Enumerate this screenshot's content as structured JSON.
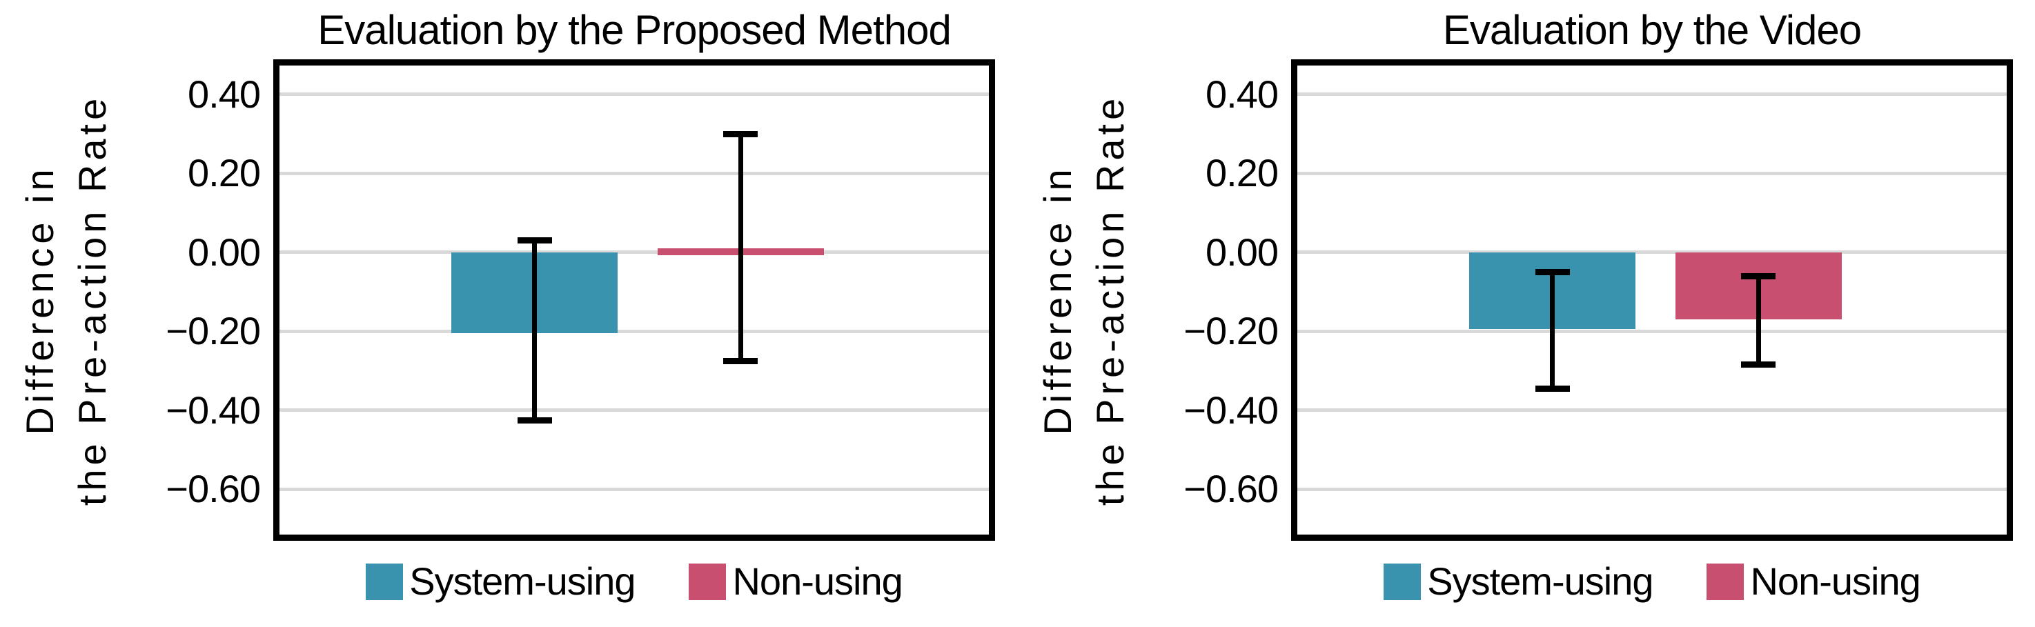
{
  "figure": {
    "background": "#ffffff",
    "frame_color": "#000000",
    "grid_color": "#d9d9d9",
    "error_bar_color": "#000000",
    "series_colors": {
      "system_using": "#3a93ae",
      "non_using": "#c94f70"
    }
  },
  "chart_data": [
    {
      "type": "bar",
      "title": "Evaluation by the Proposed Method",
      "ylabel_lines": [
        "Difference in",
        "the Pre-action Rate"
      ],
      "categories": [
        "System-using",
        "Non-using"
      ],
      "bars": [
        {
          "label": "System-using",
          "value": -0.205,
          "error_high": 0.03,
          "error_low": -0.425,
          "color": "#3a93ae"
        },
        {
          "label": "Non-using",
          "value": 0.01,
          "error_high": 0.3,
          "error_low": -0.275,
          "color": "#c94f70"
        }
      ],
      "ylim": [
        -0.715,
        0.473
      ],
      "yticks": [
        0.4,
        0.2,
        0.0,
        -0.2,
        -0.4,
        -0.6
      ],
      "ytick_labels": [
        "0.40",
        "0.20",
        "0.00",
        "−0.20",
        "−0.40",
        "−0.60"
      ],
      "grid": true,
      "grid_color": "#d9d9d9",
      "legend_position": "bottom",
      "legend": [
        "System-using",
        "Non-using"
      ]
    },
    {
      "type": "bar",
      "title": "Evaluation by the Video",
      "ylabel_lines": [
        "Difference in",
        "the Pre-action Rate"
      ],
      "categories": [
        "System-using",
        "Non-using"
      ],
      "bars": [
        {
          "label": "System-using",
          "value": -0.195,
          "error_high": -0.05,
          "error_low": -0.345,
          "color": "#3a93ae"
        },
        {
          "label": "Non-using",
          "value": -0.17,
          "error_high": -0.06,
          "error_low": -0.285,
          "color": "#c94f70"
        }
      ],
      "ylim": [
        -0.715,
        0.473
      ],
      "yticks": [
        0.4,
        0.2,
        0.0,
        -0.2,
        -0.4,
        -0.6
      ],
      "ytick_labels": [
        "0.40",
        "0.20",
        "0.00",
        "−0.20",
        "−0.40",
        "−0.60"
      ],
      "grid": true,
      "grid_color": "#d9d9d9",
      "legend_position": "bottom",
      "legend": [
        "System-using",
        "Non-using"
      ]
    }
  ]
}
